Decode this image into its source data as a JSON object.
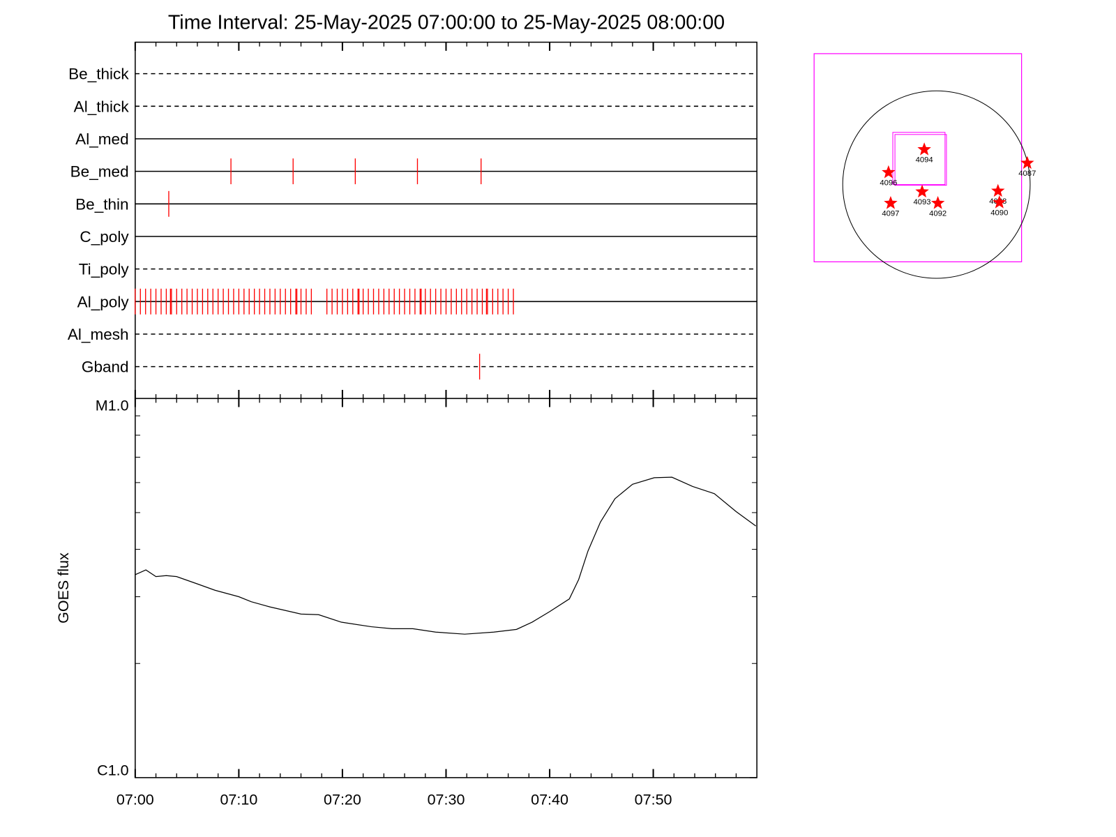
{
  "chart_data": [
    {
      "type": "timeline",
      "title": "Time Interval: 25-May-2025 07:00:00 to 25-May-2025 08:00:00",
      "series": [
        {
          "name": "Be_thick",
          "line_style": "dashed",
          "color": "#ff0000",
          "values": []
        },
        {
          "name": "Al_thick",
          "line_style": "dashed",
          "color": "#ff0000",
          "values": []
        },
        {
          "name": "Al_med",
          "line_style": "solid",
          "color": "#ff0000",
          "values": []
        },
        {
          "name": "Be_med",
          "line_style": "solid",
          "color": "#ff0000",
          "values": [
            9.24,
            15.24,
            21.24,
            27.24,
            33.38
          ]
        },
        {
          "name": "Be_thin",
          "line_style": "solid",
          "color": "#ff0000",
          "values": [
            3.24
          ]
        },
        {
          "name": "C_poly",
          "line_style": "solid",
          "color": "#ff0000",
          "values": []
        },
        {
          "name": "Ti_poly",
          "line_style": "dashed",
          "color": "#ff0000",
          "values": []
        },
        {
          "name": "Al_poly",
          "line_style": "solid",
          "color": "#ff0000",
          "values": [
            0,
            0.5,
            1,
            1.5,
            2,
            2.5,
            3,
            3.4,
            3.5,
            4,
            4.5,
            5,
            5.5,
            6,
            6.5,
            7,
            7.5,
            8,
            8.5,
            9,
            9.5,
            10,
            10.5,
            11,
            11.5,
            12,
            12.5,
            13,
            13.5,
            14,
            14.5,
            15,
            15.5,
            15.6,
            16,
            16.5,
            17,
            18.5,
            19,
            19.5,
            20,
            20.5,
            21,
            21.5,
            21.6,
            22,
            22.5,
            23,
            23.5,
            24,
            24.5,
            25,
            25.5,
            26,
            26.5,
            27,
            27.5,
            27.6,
            28,
            28.5,
            29,
            29.5,
            30,
            30.5,
            31,
            31.5,
            32,
            32.5,
            33,
            33.5,
            33.9,
            34,
            34.5,
            35,
            35.5,
            36,
            36.5
          ]
        },
        {
          "name": "Al_mesh",
          "line_style": "dashed",
          "color": "#ff0000",
          "values": []
        },
        {
          "name": "Gband",
          "line_style": "dashed",
          "color": "#ff0000",
          "values": [
            33.24
          ]
        }
      ]
    },
    {
      "type": "line",
      "ylabel": "GOES flux",
      "log_scale": true,
      "xlim": [
        0,
        60
      ],
      "xticks": [
        {
          "value": 0,
          "label": "07:00"
        },
        {
          "value": 10,
          "label": "07:10"
        },
        {
          "value": 20,
          "label": "07:20"
        },
        {
          "value": 30,
          "label": "07:30"
        },
        {
          "value": 40,
          "label": "07:40"
        },
        {
          "value": 50,
          "label": "07:50"
        }
      ],
      "xminorticks": [
        2,
        4,
        6,
        8,
        12,
        14,
        16,
        18,
        22,
        24,
        26,
        28,
        32,
        34,
        36,
        38,
        42,
        44,
        46,
        48,
        52,
        54,
        56,
        58
      ],
      "ylim": [
        1e-06,
        1e-05
      ],
      "yticks": [
        {
          "value": 1e-06,
          "label": "C1.0"
        },
        {
          "value": 1e-05,
          "label": "M1.0"
        }
      ],
      "yminorticks": [
        2e-06,
        3e-06,
        4e-06,
        5e-06,
        6e-06,
        7e-06,
        8e-06,
        9e-06
      ],
      "x": [
        0,
        1.03,
        2,
        3,
        4,
        5.9,
        7.7,
        10,
        11.2,
        13,
        16,
        17.7,
        19.9,
        22.8,
        24.8,
        26.8,
        29,
        31.8,
        34.6,
        36.8,
        38.3,
        40,
        41.9,
        42.8,
        43.7,
        44.9,
        46.3,
        48,
        50.1,
        51.8,
        53.8,
        55.9,
        58,
        59.9
      ],
      "series": [
        {
          "color": "#000000",
          "values": [
            3.43e-06,
            3.53e-06,
            3.39e-06,
            3.41e-06,
            3.39e-06,
            3.25e-06,
            3.12e-06,
            3e-06,
            2.91e-06,
            2.82e-06,
            2.7e-06,
            2.69e-06,
            2.57e-06,
            2.5e-06,
            2.47e-06,
            2.47e-06,
            2.42e-06,
            2.39e-06,
            2.42e-06,
            2.46e-06,
            2.57e-06,
            2.74e-06,
            2.96e-06,
            3.33e-06,
            3.96e-06,
            4.72e-06,
            5.44e-06,
            5.94e-06,
            6.18e-06,
            6.2e-06,
            5.86e-06,
            5.61e-06,
            5.03e-06,
            4.61e-06
          ]
        }
      ]
    }
  ],
  "context_map": {
    "regions": [
      "4094",
      "4096",
      "4087",
      "4093",
      "4088",
      "4097",
      "4092",
      "4090"
    ]
  }
}
